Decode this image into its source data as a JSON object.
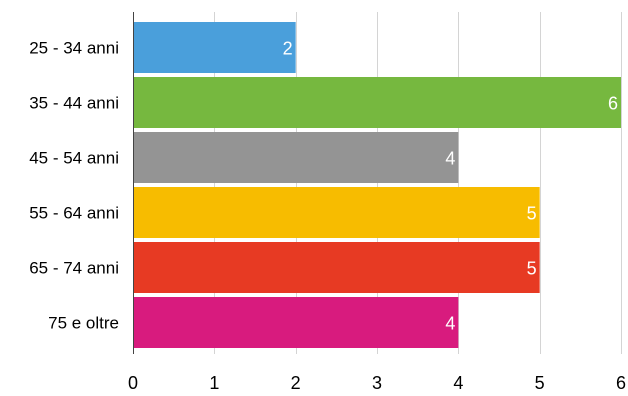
{
  "chart_data": {
    "type": "bar",
    "orientation": "horizontal",
    "categories": [
      "25 - 34 anni",
      "35 - 44 anni",
      "45 - 54 anni",
      "55 - 64 anni",
      "65 - 74 anni",
      "75 e oltre"
    ],
    "values": [
      2,
      6,
      4,
      5,
      5,
      4
    ],
    "colors": [
      "#4a9fdb",
      "#76b83f",
      "#949494",
      "#f7bc00",
      "#e73a23",
      "#d81b7e"
    ],
    "data_labels": [
      "2",
      "6",
      "4",
      "5",
      "5",
      "4"
    ],
    "xticks": [
      "0",
      "1",
      "2",
      "3",
      "4",
      "5",
      "6"
    ],
    "xlim": [
      0,
      6
    ],
    "grid": true,
    "legend": "none"
  }
}
